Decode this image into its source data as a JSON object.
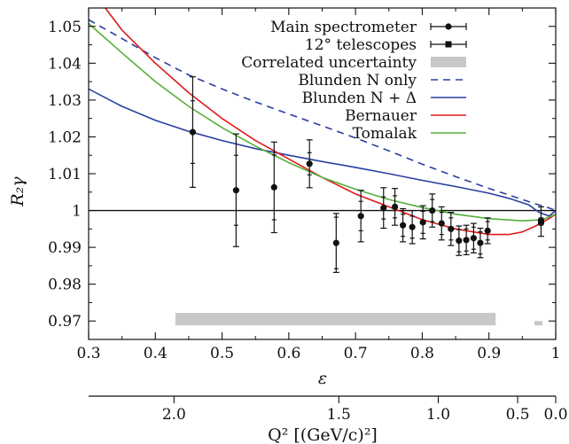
{
  "chart_data": {
    "type": "scatter",
    "title": "",
    "xlabel": "ε",
    "ylabel": "R₂γ",
    "xlim": [
      0.3,
      1.0
    ],
    "ylim": [
      0.965,
      1.055
    ],
    "x_ticks": [
      0.3,
      0.4,
      0.5,
      0.6,
      0.7,
      0.8,
      0.9,
      1.0
    ],
    "x_tick_labels": [
      "0.3",
      "0.4",
      "0.5",
      "0.6",
      "0.7",
      "0.8",
      "0.9",
      "1"
    ],
    "y_ticks": [
      0.97,
      0.98,
      0.99,
      1.0,
      1.01,
      1.02,
      1.03,
      1.04,
      1.05
    ],
    "y_tick_labels": [
      "0.97",
      "0.98",
      "0.99",
      "1",
      "1.01",
      "1.02",
      "1.03",
      "1.04",
      "1.05"
    ],
    "reference_line": 1.0,
    "secondary_axis": {
      "label": "Q²   [(GeV/c)²]",
      "tick_labels": [
        "2.0",
        "1.5",
        "1.0",
        "0.5",
        "0.0"
      ],
      "tick_eps": [
        0.428,
        0.675,
        0.824,
        0.943,
        1.0
      ]
    },
    "legend": {
      "placement": "top-right",
      "entries": [
        {
          "label": "Main spectrometer",
          "style": "point-errorbar-circle"
        },
        {
          "label": "12° telescopes",
          "style": "point-errorbar-square"
        },
        {
          "label": "Correlated uncertainty",
          "style": "band",
          "color": "#c8c8c8"
        },
        {
          "label": "Blunden N only",
          "style": "dashed",
          "color": "#2a3fa0"
        },
        {
          "label": "Blunden N + Δ",
          "style": "solid",
          "color": "#2a3fa0"
        },
        {
          "label": "Bernauer",
          "style": "solid",
          "color": "#e0191b"
        },
        {
          "label": "Tomalak",
          "style": "solid",
          "color": "#55b03a"
        }
      ]
    },
    "series": [
      {
        "name": "Main spectrometer",
        "kind": "points",
        "marker": "circle",
        "points": [
          {
            "x": 0.456,
            "y": 1.0213,
            "stat": 0.0085,
            "tot": 0.015
          },
          {
            "x": 0.521,
            "y": 1.0055,
            "stat": 0.0095,
            "tot": 0.0153
          },
          {
            "x": 0.578,
            "y": 1.0063,
            "stat": 0.0088,
            "tot": 0.0123
          },
          {
            "x": 0.631,
            "y": 1.0127,
            "stat": 0.003,
            "tot": 0.0065
          },
          {
            "x": 0.671,
            "y": 0.9912,
            "stat": 0.007,
            "tot": 0.008
          },
          {
            "x": 0.708,
            "y": 0.9985,
            "stat": 0.004,
            "tot": 0.007
          },
          {
            "x": 0.742,
            "y": 1.0007,
            "stat": 0.003,
            "tot": 0.0055
          },
          {
            "x": 0.759,
            "y": 1.001,
            "stat": 0.003,
            "tot": 0.005
          },
          {
            "x": 0.771,
            "y": 0.996,
            "stat": 0.003,
            "tot": 0.0045
          },
          {
            "x": 0.785,
            "y": 0.9955,
            "stat": 0.003,
            "tot": 0.0045
          },
          {
            "x": 0.801,
            "y": 0.9968,
            "stat": 0.003,
            "tot": 0.0045
          },
          {
            "x": 0.815,
            "y": 1.0,
            "stat": 0.003,
            "tot": 0.0045
          },
          {
            "x": 0.829,
            "y": 0.9965,
            "stat": 0.003,
            "tot": 0.0045
          },
          {
            "x": 0.843,
            "y": 0.995,
            "stat": 0.003,
            "tot": 0.0045
          },
          {
            "x": 0.855,
            "y": 0.9918,
            "stat": 0.003,
            "tot": 0.004
          },
          {
            "x": 0.866,
            "y": 0.992,
            "stat": 0.003,
            "tot": 0.004
          },
          {
            "x": 0.877,
            "y": 0.9925,
            "stat": 0.003,
            "tot": 0.004
          },
          {
            "x": 0.887,
            "y": 0.9912,
            "stat": 0.003,
            "tot": 0.004
          },
          {
            "x": 0.898,
            "y": 0.9945,
            "stat": 0.0025,
            "tot": 0.0035
          }
        ]
      },
      {
        "name": "12° telescopes",
        "kind": "points",
        "marker": "square",
        "points": [
          {
            "x": 0.978,
            "y": 0.997,
            "stat": 0.001,
            "tot": 0.004
          }
        ]
      },
      {
        "name": "Correlated uncertainty",
        "kind": "bands",
        "bands": [
          {
            "x0": 0.43,
            "x1": 0.91,
            "y0": 0.9688,
            "y1": 0.9722
          },
          {
            "x0": 0.968,
            "x1": 0.98,
            "y0": 0.9688,
            "y1": 0.97
          }
        ]
      },
      {
        "name": "Blunden N only",
        "kind": "line",
        "dash": true,
        "color": "#2a3fa0",
        "x": [
          0.3,
          0.35,
          0.4,
          0.45,
          0.5,
          0.55,
          0.6,
          0.65,
          0.7,
          0.75,
          0.8,
          0.85,
          0.9,
          0.94,
          0.97,
          0.99,
          1.0
        ],
        "y": [
          1.0518,
          1.0467,
          1.0415,
          1.0368,
          1.033,
          1.0295,
          1.0262,
          1.023,
          1.0197,
          1.0162,
          1.0126,
          1.0092,
          1.006,
          1.0036,
          1.0018,
          1.0007,
          1.0
        ]
      },
      {
        "name": "Blunden N + Δ",
        "kind": "line",
        "dash": false,
        "color": "#2a3fa0",
        "x": [
          0.3,
          0.35,
          0.4,
          0.45,
          0.5,
          0.55,
          0.6,
          0.65,
          0.7,
          0.75,
          0.8,
          0.85,
          0.9,
          0.93,
          0.96,
          0.975,
          0.99,
          1.0
        ],
        "y": [
          1.033,
          1.0283,
          1.0245,
          1.0215,
          1.019,
          1.0168,
          1.015,
          1.0133,
          1.0117,
          1.01,
          1.0082,
          1.0065,
          1.0047,
          1.0033,
          1.0015,
          0.9995,
          0.9985,
          1.0
        ]
      },
      {
        "name": "Bernauer",
        "kind": "line",
        "dash": false,
        "color": "#e0191b",
        "x": [
          0.3,
          0.325,
          0.35,
          0.4,
          0.45,
          0.5,
          0.55,
          0.6,
          0.65,
          0.7,
          0.75,
          0.8,
          0.85,
          0.9,
          0.93,
          0.95,
          0.97,
          0.99,
          1.0
        ],
        "y": [
          1.06,
          1.055,
          1.049,
          1.04,
          1.032,
          1.025,
          1.019,
          1.014,
          1.009,
          1.0045,
          1.001,
          0.9975,
          0.995,
          0.9935,
          0.9935,
          0.9942,
          0.9958,
          0.9978,
          0.999
        ]
      },
      {
        "name": "Tomalak",
        "kind": "line",
        "dash": false,
        "color": "#55b03a",
        "x": [
          0.3,
          0.35,
          0.4,
          0.45,
          0.5,
          0.55,
          0.6,
          0.65,
          0.7,
          0.75,
          0.8,
          0.85,
          0.9,
          0.95,
          0.98,
          1.0
        ],
        "y": [
          1.0508,
          1.0428,
          1.035,
          1.0283,
          1.0225,
          1.0175,
          1.013,
          1.009,
          1.0058,
          1.003,
          1.0008,
          0.999,
          0.9978,
          0.9972,
          0.9975,
          0.999
        ]
      }
    ]
  }
}
